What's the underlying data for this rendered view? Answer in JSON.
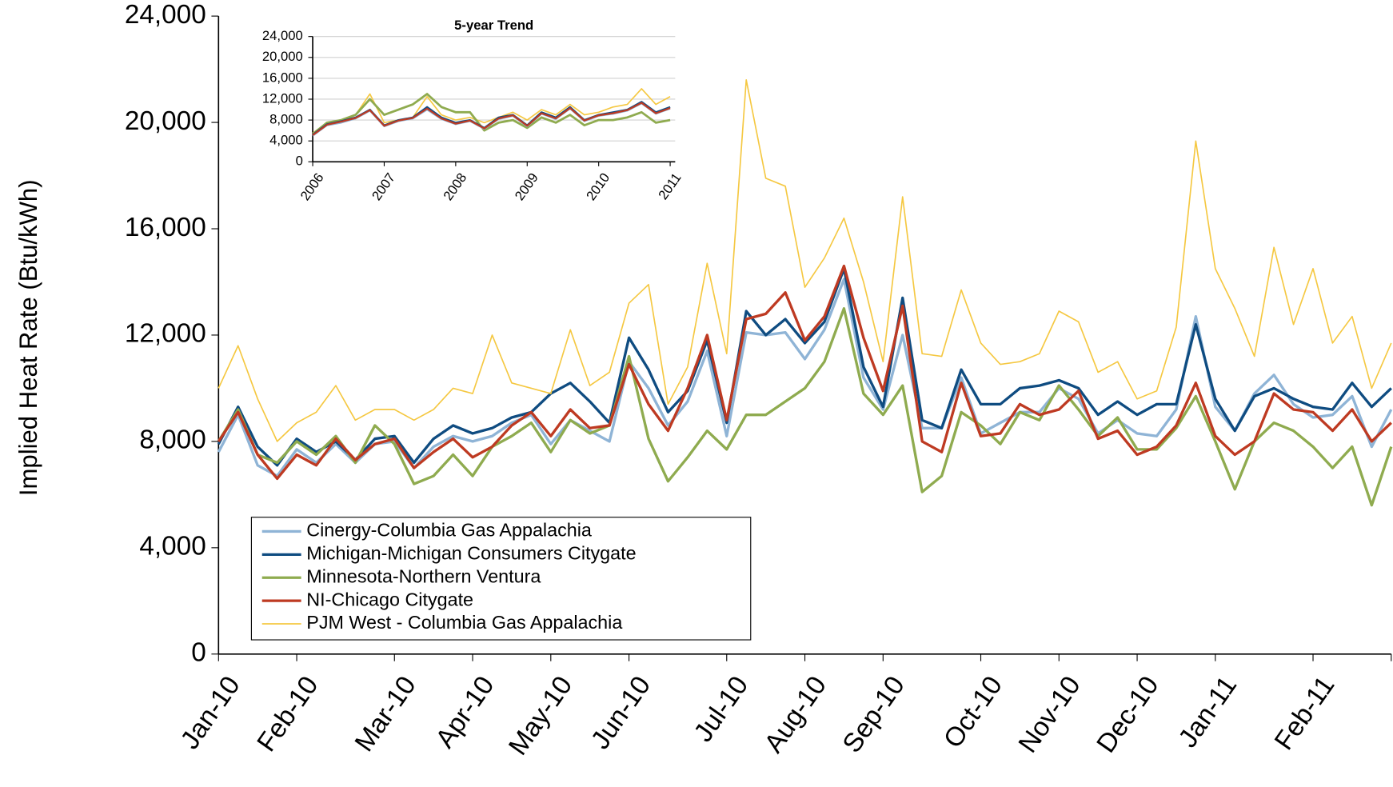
{
  "chart_data": [
    {
      "type": "line",
      "y_label": "Implied Heat Rate (Btu/kWh)",
      "categories": [
        "Jan-10",
        null,
        null,
        null,
        "Feb-10",
        null,
        null,
        null,
        null,
        "Mar-10",
        null,
        null,
        null,
        "Apr-10",
        null,
        null,
        null,
        "May-10",
        null,
        null,
        null,
        "Jun-10",
        null,
        null,
        null,
        null,
        "Jul-10",
        null,
        null,
        null,
        "Aug-10",
        null,
        null,
        null,
        "Sep-10",
        null,
        null,
        null,
        null,
        "Oct-10",
        null,
        null,
        null,
        "Nov-10",
        null,
        null,
        null,
        "Dec-10",
        null,
        null,
        null,
        "Jan-11",
        null,
        null,
        null,
        null,
        "Feb-11",
        null,
        null,
        null,
        null
      ],
      "ylim": [
        0,
        24000
      ],
      "yticks": [
        0,
        {
          "value": 4000,
          "label": "4,000"
        },
        {
          "value": 8000,
          "label": "8,000"
        },
        {
          "value": 12000,
          "label": "12,000"
        },
        {
          "value": 16000,
          "label": "16,000"
        },
        {
          "value": 20000,
          "label": "20,000"
        },
        {
          "value": 24000,
          "label": "24,000"
        }
      ],
      "grid": false,
      "legend": "lower left",
      "series": [
        {
          "name": "Cinergy-Columbia Gas Appalachia",
          "color": "#8fb4d6",
          "width": 3,
          "values": [
            7600,
            9000,
            7100,
            6700,
            7700,
            7200,
            7900,
            7200,
            7900,
            8000,
            7000,
            7800,
            8200,
            8000,
            8200,
            8700,
            9000,
            7900,
            8800,
            8400,
            8000,
            11000,
            10000,
            8600,
            9500,
            11400,
            8200,
            12100,
            12000,
            12100,
            11100,
            12200,
            14100,
            10400,
            9200,
            12000,
            8500,
            8500,
            10400,
            8300,
            8700,
            9100,
            9100,
            10000,
            9600,
            8300,
            8800,
            8300,
            8200,
            9200,
            12700,
            9300,
            8400,
            9800,
            10500,
            9400,
            8900,
            9000,
            9700,
            7800,
            9200
          ]
        },
        {
          "name": "Michigan-Michigan Consumers Citygate",
          "color": "#0f4c81",
          "width": 3,
          "values": [
            7900,
            9300,
            7800,
            7100,
            8100,
            7600,
            8000,
            7300,
            8100,
            8200,
            7200,
            8100,
            8600,
            8300,
            8500,
            8900,
            9100,
            9800,
            10200,
            9500,
            8700,
            11900,
            10700,
            9100,
            9900,
            11800,
            8700,
            12900,
            12000,
            12600,
            11700,
            12500,
            14500,
            10800,
            9300,
            13400,
            8800,
            8500,
            10700,
            9400,
            9400,
            10000,
            10100,
            10300,
            10000,
            9000,
            9500,
            9000,
            9400,
            9400,
            12400,
            9600,
            8400,
            9700,
            10000,
            9600,
            9300,
            9200,
            10200,
            9300,
            10000
          ]
        },
        {
          "name": "Minnesota-Northern Ventura",
          "color": "#8fab4f",
          "width": 3,
          "values": [
            8000,
            9200,
            7500,
            7200,
            8000,
            7500,
            8200,
            7200,
            8600,
            7900,
            6400,
            6700,
            7500,
            6700,
            7800,
            8200,
            8700,
            7600,
            8800,
            8300,
            8600,
            11200,
            8100,
            6500,
            7400,
            8400,
            7700,
            9000,
            9000,
            9500,
            10000,
            11000,
            13000,
            9800,
            9000,
            10100,
            6100,
            6700,
            9100,
            8600,
            7900,
            9100,
            8800,
            10100,
            9200,
            8200,
            8900,
            7700,
            7700,
            8500,
            9700,
            8000,
            6200,
            8000,
            8700,
            8400,
            7800,
            7000,
            7800,
            5600,
            7800
          ]
        },
        {
          "name": "NI-Chicago Citygate",
          "color": "#be3a22",
          "width": 3,
          "values": [
            8000,
            9100,
            7500,
            6600,
            7500,
            7100,
            8100,
            7300,
            7900,
            8100,
            7000,
            7600,
            8100,
            7400,
            7800,
            8600,
            9100,
            8200,
            9200,
            8500,
            8600,
            10900,
            9400,
            8400,
            10000,
            12000,
            8800,
            12600,
            12800,
            13600,
            11800,
            12700,
            14600,
            11900,
            9900,
            13100,
            8000,
            7600,
            10200,
            8200,
            8300,
            9400,
            9000,
            9200,
            9900,
            8100,
            8400,
            7500,
            7800,
            8600,
            10200,
            8200,
            7500,
            8000,
            9800,
            9200,
            9100,
            8400,
            9200,
            8000,
            8700
          ]
        },
        {
          "name": "PJM West - Columbia Gas Appalachia",
          "color": "#f5c842",
          "width": 1.5,
          "values": [
            10000,
            11600,
            9600,
            8000,
            8700,
            9100,
            10100,
            8800,
            9200,
            9200,
            8800,
            9200,
            10000,
            9800,
            12000,
            10200,
            10000,
            9800,
            12200,
            10100,
            10600,
            13200,
            13900,
            9400,
            10800,
            14700,
            11300,
            21600,
            17900,
            17600,
            13800,
            14900,
            16400,
            14000,
            11000,
            17200,
            11300,
            11200,
            13700,
            11700,
            10900,
            11000,
            11300,
            12900,
            12500,
            10600,
            11000,
            9600,
            9900,
            12300,
            19300,
            14500,
            13000,
            11200,
            15300,
            12400,
            14500,
            11700,
            12700,
            10000,
            11700
          ]
        }
      ]
    },
    {
      "type": "line",
      "title": "5-year Trend",
      "x": [
        2006.0,
        2006.2,
        2006.4,
        2006.6,
        2006.8,
        2007.0,
        2007.2,
        2007.4,
        2007.6,
        2007.8,
        2008.0,
        2008.2,
        2008.4,
        2008.6,
        2008.8,
        2009.0,
        2009.2,
        2009.4,
        2009.6,
        2009.8,
        2010.0,
        2010.2,
        2010.4,
        2010.6,
        2010.8,
        2011.0
      ],
      "xlim": [
        2006,
        2011.07
      ],
      "xticks": [
        2006,
        2007,
        2008,
        2009,
        2010,
        2011
      ],
      "ylim": [
        0,
        24000
      ],
      "yticks": [
        0,
        {
          "value": 4000,
          "label": "4,000"
        },
        {
          "value": 8000,
          "label": "8,000"
        },
        {
          "value": 12000,
          "label": "12,000"
        },
        {
          "value": 16000,
          "label": "16,000"
        },
        {
          "value": 20000,
          "label": "20,000"
        },
        {
          "value": 24000,
          "label": "24,000"
        }
      ],
      "grid": true,
      "series": [
        {
          "color": "#f5c842",
          "width": 1.5,
          "values": [
            5500,
            7500,
            8000,
            9000,
            13000,
            7500,
            8000,
            8500,
            12500,
            9000,
            8000,
            8500,
            7500,
            8500,
            9500,
            8000,
            10000,
            9000,
            11000,
            9000,
            9500,
            10500,
            11000,
            14000,
            11000,
            12500
          ]
        },
        {
          "color": "#8fab4f",
          "width": 2.5,
          "values": [
            5300,
            7500,
            8000,
            9000,
            12000,
            9000,
            10000,
            11000,
            13000,
            10500,
            9500,
            9500,
            6000,
            7500,
            8000,
            6500,
            8500,
            7500,
            9000,
            7000,
            8000,
            8000,
            8500,
            9500,
            7500,
            8000
          ]
        },
        {
          "color": "#0f4c81",
          "width": 2,
          "values": [
            5200,
            7200,
            7800,
            8500,
            10000,
            7000,
            8000,
            8500,
            10500,
            8500,
            7500,
            8000,
            6500,
            8500,
            9000,
            7000,
            9500,
            8500,
            10500,
            8000,
            9000,
            9500,
            10000,
            11500,
            9500,
            10500
          ]
        },
        {
          "color": "#8fb4d6",
          "width": 2,
          "values": [
            5000,
            7000,
            7500,
            8300,
            9800,
            6800,
            7800,
            8300,
            10000,
            8200,
            7200,
            7800,
            6300,
            8200,
            8800,
            6800,
            9200,
            8200,
            10200,
            7800,
            8800,
            9200,
            9800,
            11200,
            9200,
            10200
          ]
        },
        {
          "color": "#be3a22",
          "width": 2,
          "values": [
            5100,
            7100,
            7700,
            8400,
            9900,
            6900,
            7900,
            8400,
            10200,
            8300,
            7300,
            7900,
            6400,
            8300,
            8900,
            6900,
            9300,
            8300,
            10300,
            7900,
            8900,
            9300,
            9900,
            11300,
            9300,
            10300
          ]
        }
      ]
    }
  ]
}
